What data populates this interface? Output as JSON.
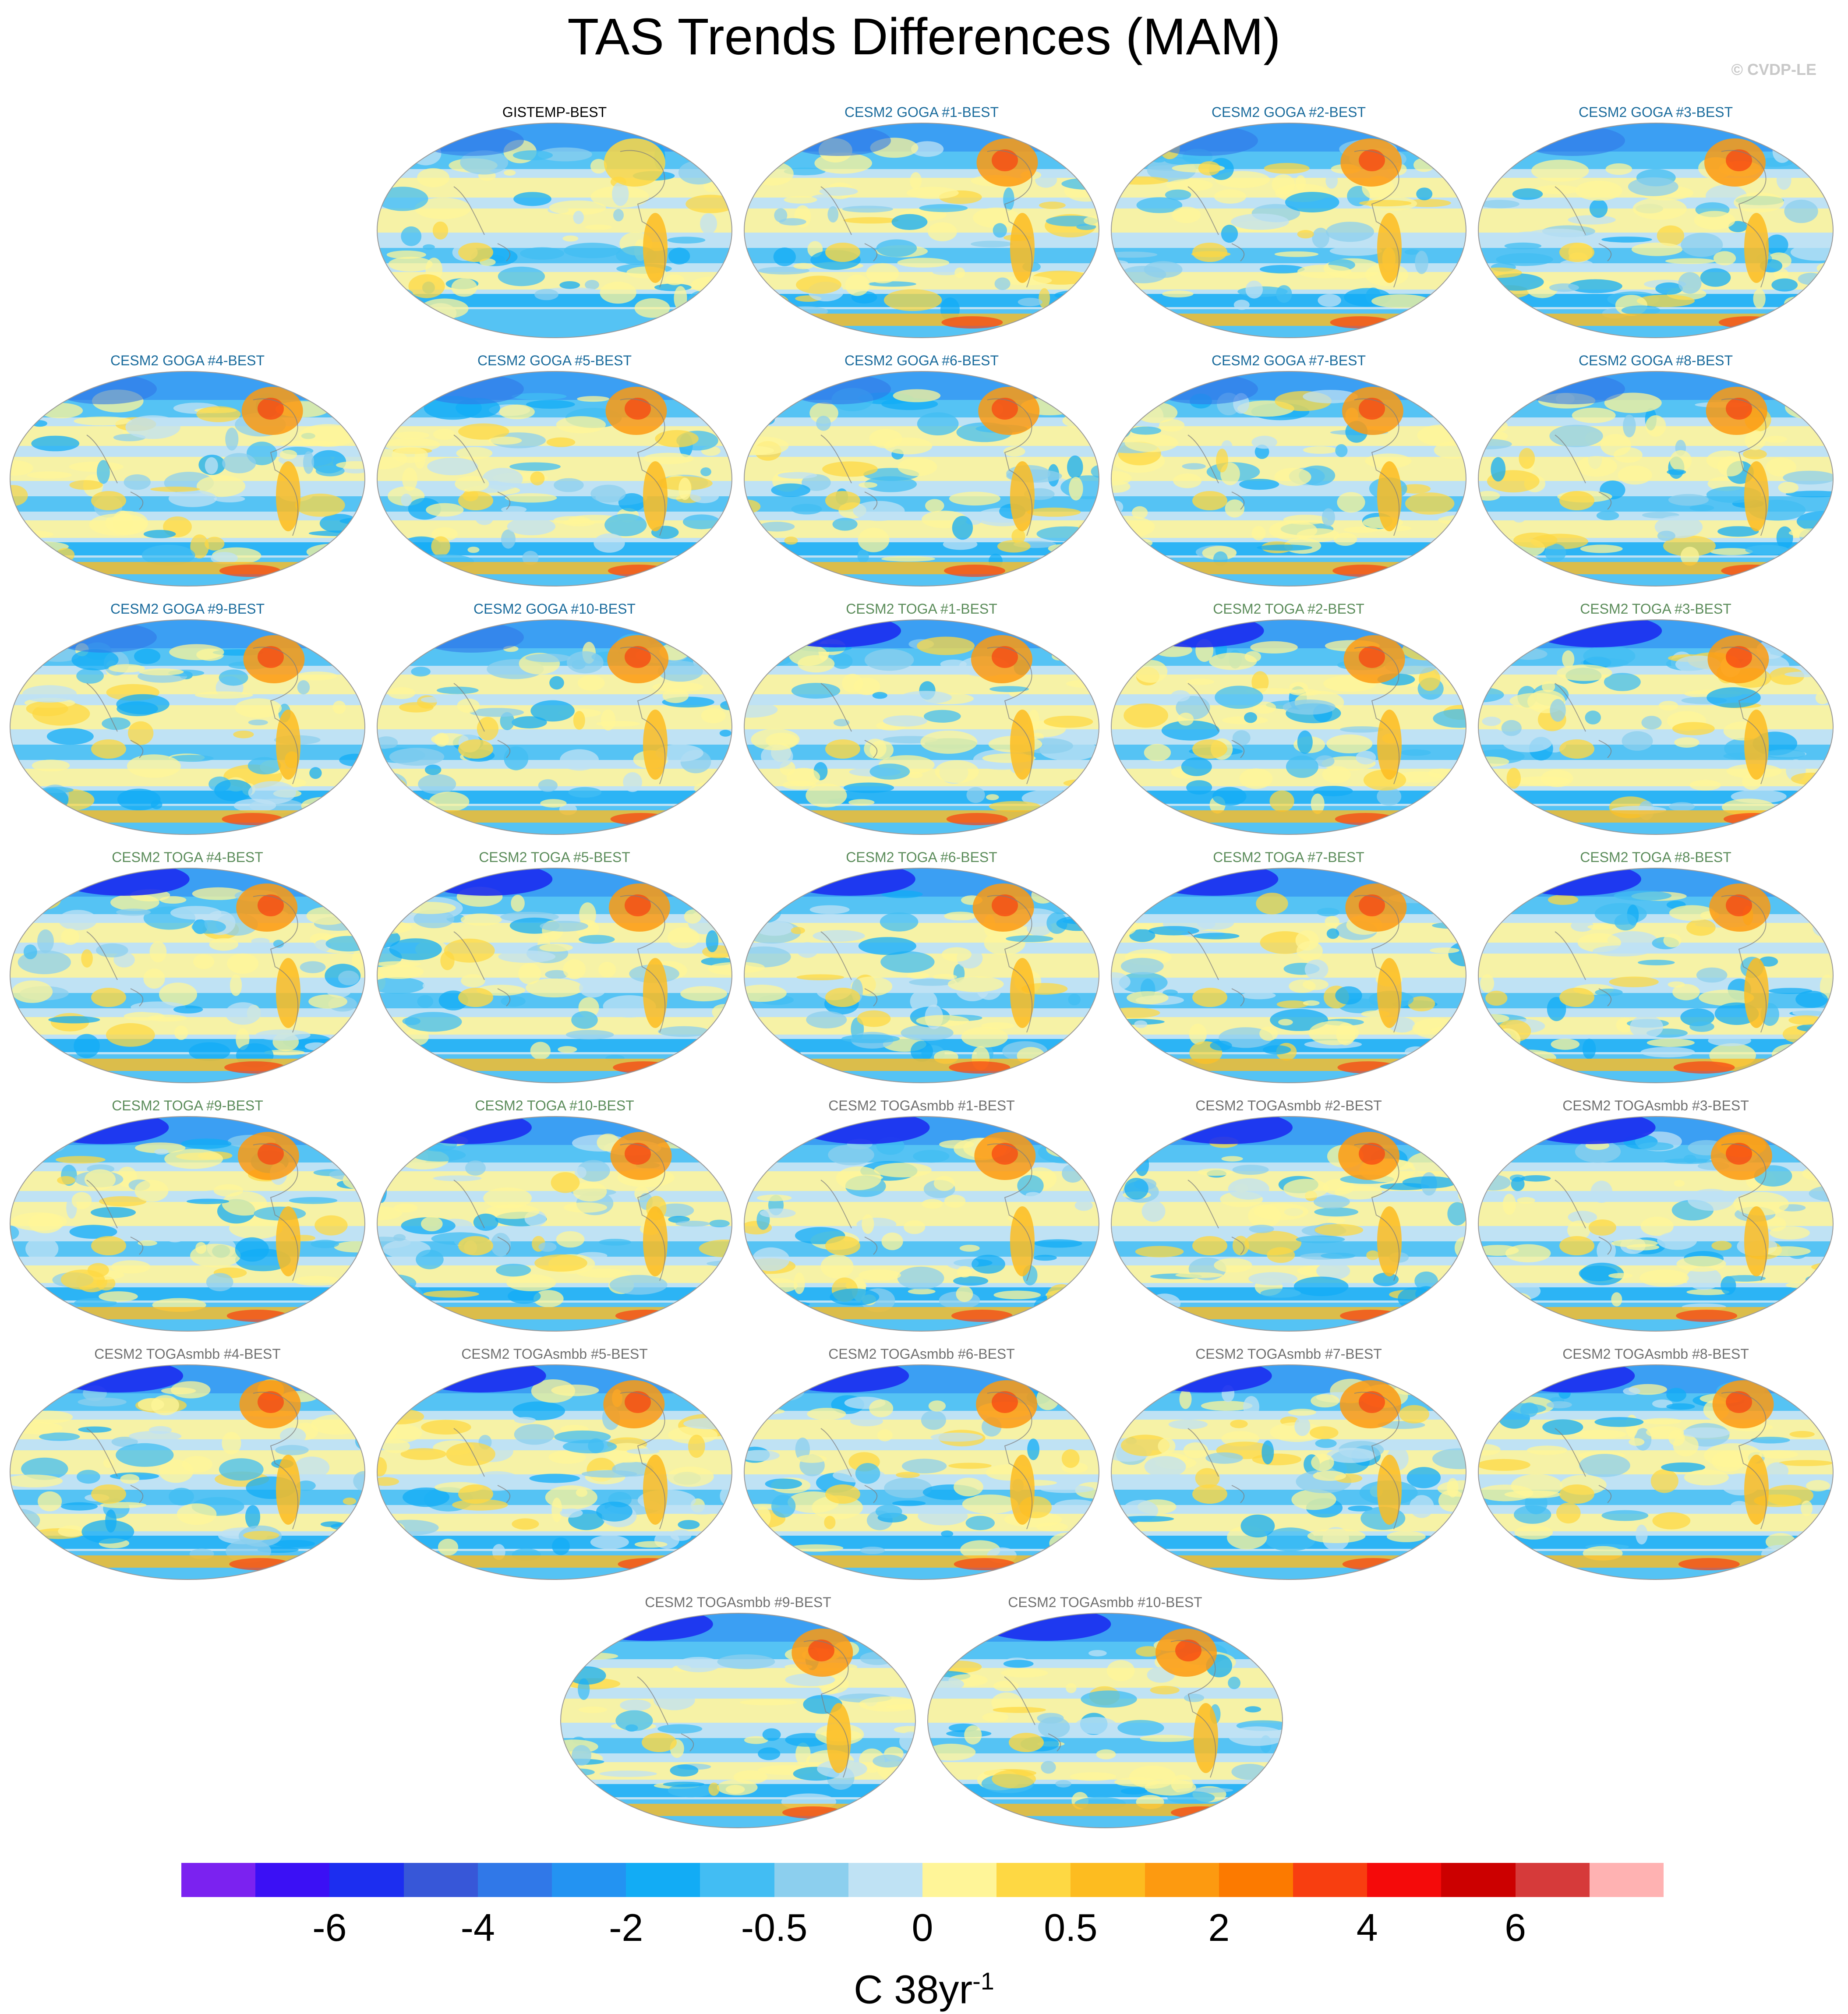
{
  "figure": {
    "title": "TAS Trends Differences (MAM)",
    "credit": "© CVDP-LE"
  },
  "panels": [
    {
      "title": "GISTEMP-BEST",
      "title_color": "#000000",
      "row": 0,
      "col": 1
    },
    {
      "title": "CESM2 GOGA #1-BEST",
      "title_color": "#1a6b9c",
      "row": 0,
      "col": 2
    },
    {
      "title": "CESM2 GOGA #2-BEST",
      "title_color": "#1a6b9c",
      "row": 0,
      "col": 3
    },
    {
      "title": "CESM2 GOGA #3-BEST",
      "title_color": "#1a6b9c",
      "row": 0,
      "col": 4
    },
    {
      "title": "CESM2 GOGA #4-BEST",
      "title_color": "#1a6b9c",
      "row": 1,
      "col": 0
    },
    {
      "title": "CESM2 GOGA #5-BEST",
      "title_color": "#1a6b9c",
      "row": 1,
      "col": 1
    },
    {
      "title": "CESM2 GOGA #6-BEST",
      "title_color": "#1a6b9c",
      "row": 1,
      "col": 2
    },
    {
      "title": "CESM2 GOGA #7-BEST",
      "title_color": "#1a6b9c",
      "row": 1,
      "col": 3
    },
    {
      "title": "CESM2 GOGA #8-BEST",
      "title_color": "#1a6b9c",
      "row": 1,
      "col": 4
    },
    {
      "title": "CESM2 GOGA #9-BEST",
      "title_color": "#1a6b9c",
      "row": 2,
      "col": 0
    },
    {
      "title": "CESM2 GOGA #10-BEST",
      "title_color": "#1a6b9c",
      "row": 2,
      "col": 1
    },
    {
      "title": "CESM2 TOGA #1-BEST",
      "title_color": "#5b8c5a",
      "row": 2,
      "col": 2
    },
    {
      "title": "CESM2 TOGA #2-BEST",
      "title_color": "#5b8c5a",
      "row": 2,
      "col": 3
    },
    {
      "title": "CESM2 TOGA #3-BEST",
      "title_color": "#5b8c5a",
      "row": 2,
      "col": 4
    },
    {
      "title": "CESM2 TOGA #4-BEST",
      "title_color": "#5b8c5a",
      "row": 3,
      "col": 0
    },
    {
      "title": "CESM2 TOGA #5-BEST",
      "title_color": "#5b8c5a",
      "row": 3,
      "col": 1
    },
    {
      "title": "CESM2 TOGA #6-BEST",
      "title_color": "#5b8c5a",
      "row": 3,
      "col": 2
    },
    {
      "title": "CESM2 TOGA #7-BEST",
      "title_color": "#5b8c5a",
      "row": 3,
      "col": 3
    },
    {
      "title": "CESM2 TOGA #8-BEST",
      "title_color": "#5b8c5a",
      "row": 3,
      "col": 4
    },
    {
      "title": "CESM2 TOGA #9-BEST",
      "title_color": "#5b8c5a",
      "row": 4,
      "col": 0
    },
    {
      "title": "CESM2 TOGA #10-BEST",
      "title_color": "#5b8c5a",
      "row": 4,
      "col": 1
    },
    {
      "title": "CESM2 TOGAsmbb #1-BEST",
      "title_color": "#707070",
      "row": 4,
      "col": 2
    },
    {
      "title": "CESM2 TOGAsmbb #2-BEST",
      "title_color": "#707070",
      "row": 4,
      "col": 3
    },
    {
      "title": "CESM2 TOGAsmbb #3-BEST",
      "title_color": "#707070",
      "row": 4,
      "col": 4
    },
    {
      "title": "CESM2 TOGAsmbb #4-BEST",
      "title_color": "#707070",
      "row": 5,
      "col": 0
    },
    {
      "title": "CESM2 TOGAsmbb #5-BEST",
      "title_color": "#707070",
      "row": 5,
      "col": 1
    },
    {
      "title": "CESM2 TOGAsmbb #6-BEST",
      "title_color": "#707070",
      "row": 5,
      "col": 2
    },
    {
      "title": "CESM2 TOGAsmbb #7-BEST",
      "title_color": "#707070",
      "row": 5,
      "col": 3
    },
    {
      "title": "CESM2 TOGAsmbb #8-BEST",
      "title_color": "#707070",
      "row": 5,
      "col": 4
    },
    {
      "title": "CESM2 TOGAsmbb #9-BEST",
      "title_color": "#707070",
      "row": 6,
      "col": 1.5
    },
    {
      "title": "CESM2 TOGAsmbb #10-BEST",
      "title_color": "#707070",
      "row": 6,
      "col": 2.5
    }
  ],
  "colorbar": {
    "colors": [
      "#7b22f0",
      "#3b10f5",
      "#1c2ef0",
      "#3757d8",
      "#3078e8",
      "#2393f2",
      "#12acf5",
      "#42bdf3",
      "#8ccfee",
      "#bfe2f4",
      "#fff598",
      "#fed843",
      "#fdbc20",
      "#fd9a10",
      "#fc7a00",
      "#f83e10",
      "#f50a0a",
      "#cc0000",
      "#d63a3a",
      "#ffb2b2"
    ],
    "tick_labels": [
      "-6",
      "-4",
      "-2",
      "-0.5",
      "0",
      "0.5",
      "2",
      "4",
      "6"
    ],
    "tick_boundaries": [
      2,
      4,
      6,
      8,
      10,
      12,
      14,
      16,
      18
    ],
    "units": "C 38yr",
    "units_superscript": "-1"
  }
}
